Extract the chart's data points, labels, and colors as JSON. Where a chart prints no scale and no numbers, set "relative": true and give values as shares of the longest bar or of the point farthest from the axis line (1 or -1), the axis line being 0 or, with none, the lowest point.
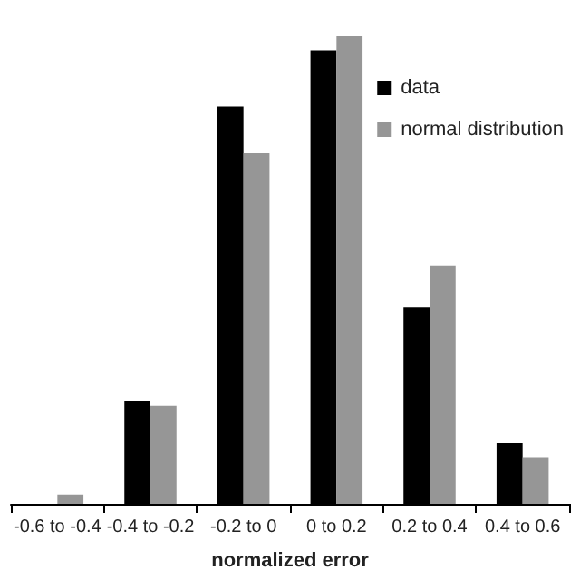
{
  "chart_data": {
    "type": "bar",
    "relative": true,
    "xlabel": "normalized error",
    "categories": [
      "-0.6 to -0.4",
      "-0.4 to -0.2",
      "-0.2 to 0",
      "0 to 0.2",
      "0.2 to 0.4",
      "0.4 to 0.6"
    ],
    "series": [
      {
        "name": "data",
        "color": "#000000",
        "values": [
          0,
          0.22,
          0.85,
          0.97,
          0.42,
          0.13
        ]
      },
      {
        "name": "normal distribution",
        "color": "#969696",
        "values": [
          0.02,
          0.21,
          0.75,
          1,
          0.51,
          0.1
        ]
      }
    ],
    "legend": "top right",
    "grid": false
  }
}
